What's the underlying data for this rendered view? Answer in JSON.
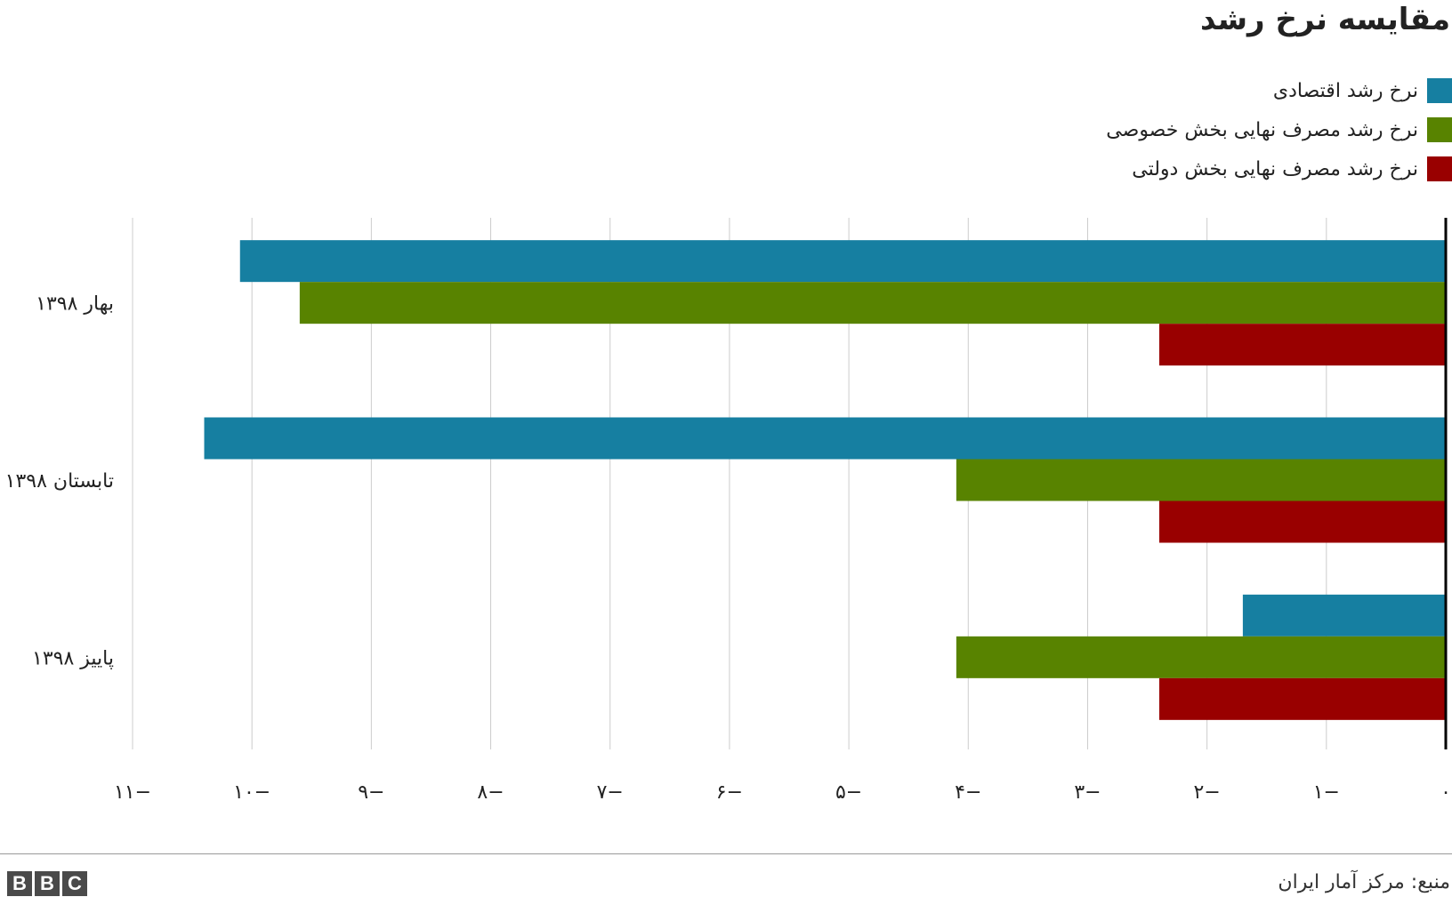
{
  "colors": {
    "series1": "#167fa1",
    "series2": "#588300",
    "series3": "#990000",
    "grid": "#cccccc",
    "baseline": "#000000"
  },
  "source": "منبع: مرکز آمار ایران",
  "logo": [
    "B",
    "B",
    "C"
  ],
  "chart_data": {
    "type": "bar",
    "orientation": "horizontal",
    "title": "مقایسه نرخ رشد",
    "categories": [
      "بهار ۱۳۹۸",
      "تابستان ۱۳۹۸",
      "پاییز ۱۳۹۸"
    ],
    "series": [
      {
        "name": "نرخ رشد اقتصادی",
        "values": [
          -10.1,
          -10.4,
          -1.7
        ]
      },
      {
        "name": "نرخ رشد مصرف نهایی بخش خصوصی",
        "values": [
          -9.6,
          -4.1,
          -4.1
        ]
      },
      {
        "name": "نرخ رشد مصرف نهایی بخش دولتی",
        "values": [
          -2.4,
          -2.4,
          -2.4
        ]
      }
    ],
    "xlim": [
      -11,
      0
    ],
    "xticks": [
      -11,
      -10,
      -9,
      -8,
      -7,
      -6,
      -5,
      -4,
      -3,
      -2,
      -1,
      0
    ],
    "xtick_labels": [
      "۱۱−",
      "۱۰−",
      "۹−",
      "۸−",
      "۷−",
      "۶−",
      "۵−",
      "۴−",
      "۳−",
      "۲−",
      "۱−",
      "۰"
    ],
    "grid": true,
    "legend": "top-right",
    "xlabel": "",
    "ylabel": ""
  }
}
